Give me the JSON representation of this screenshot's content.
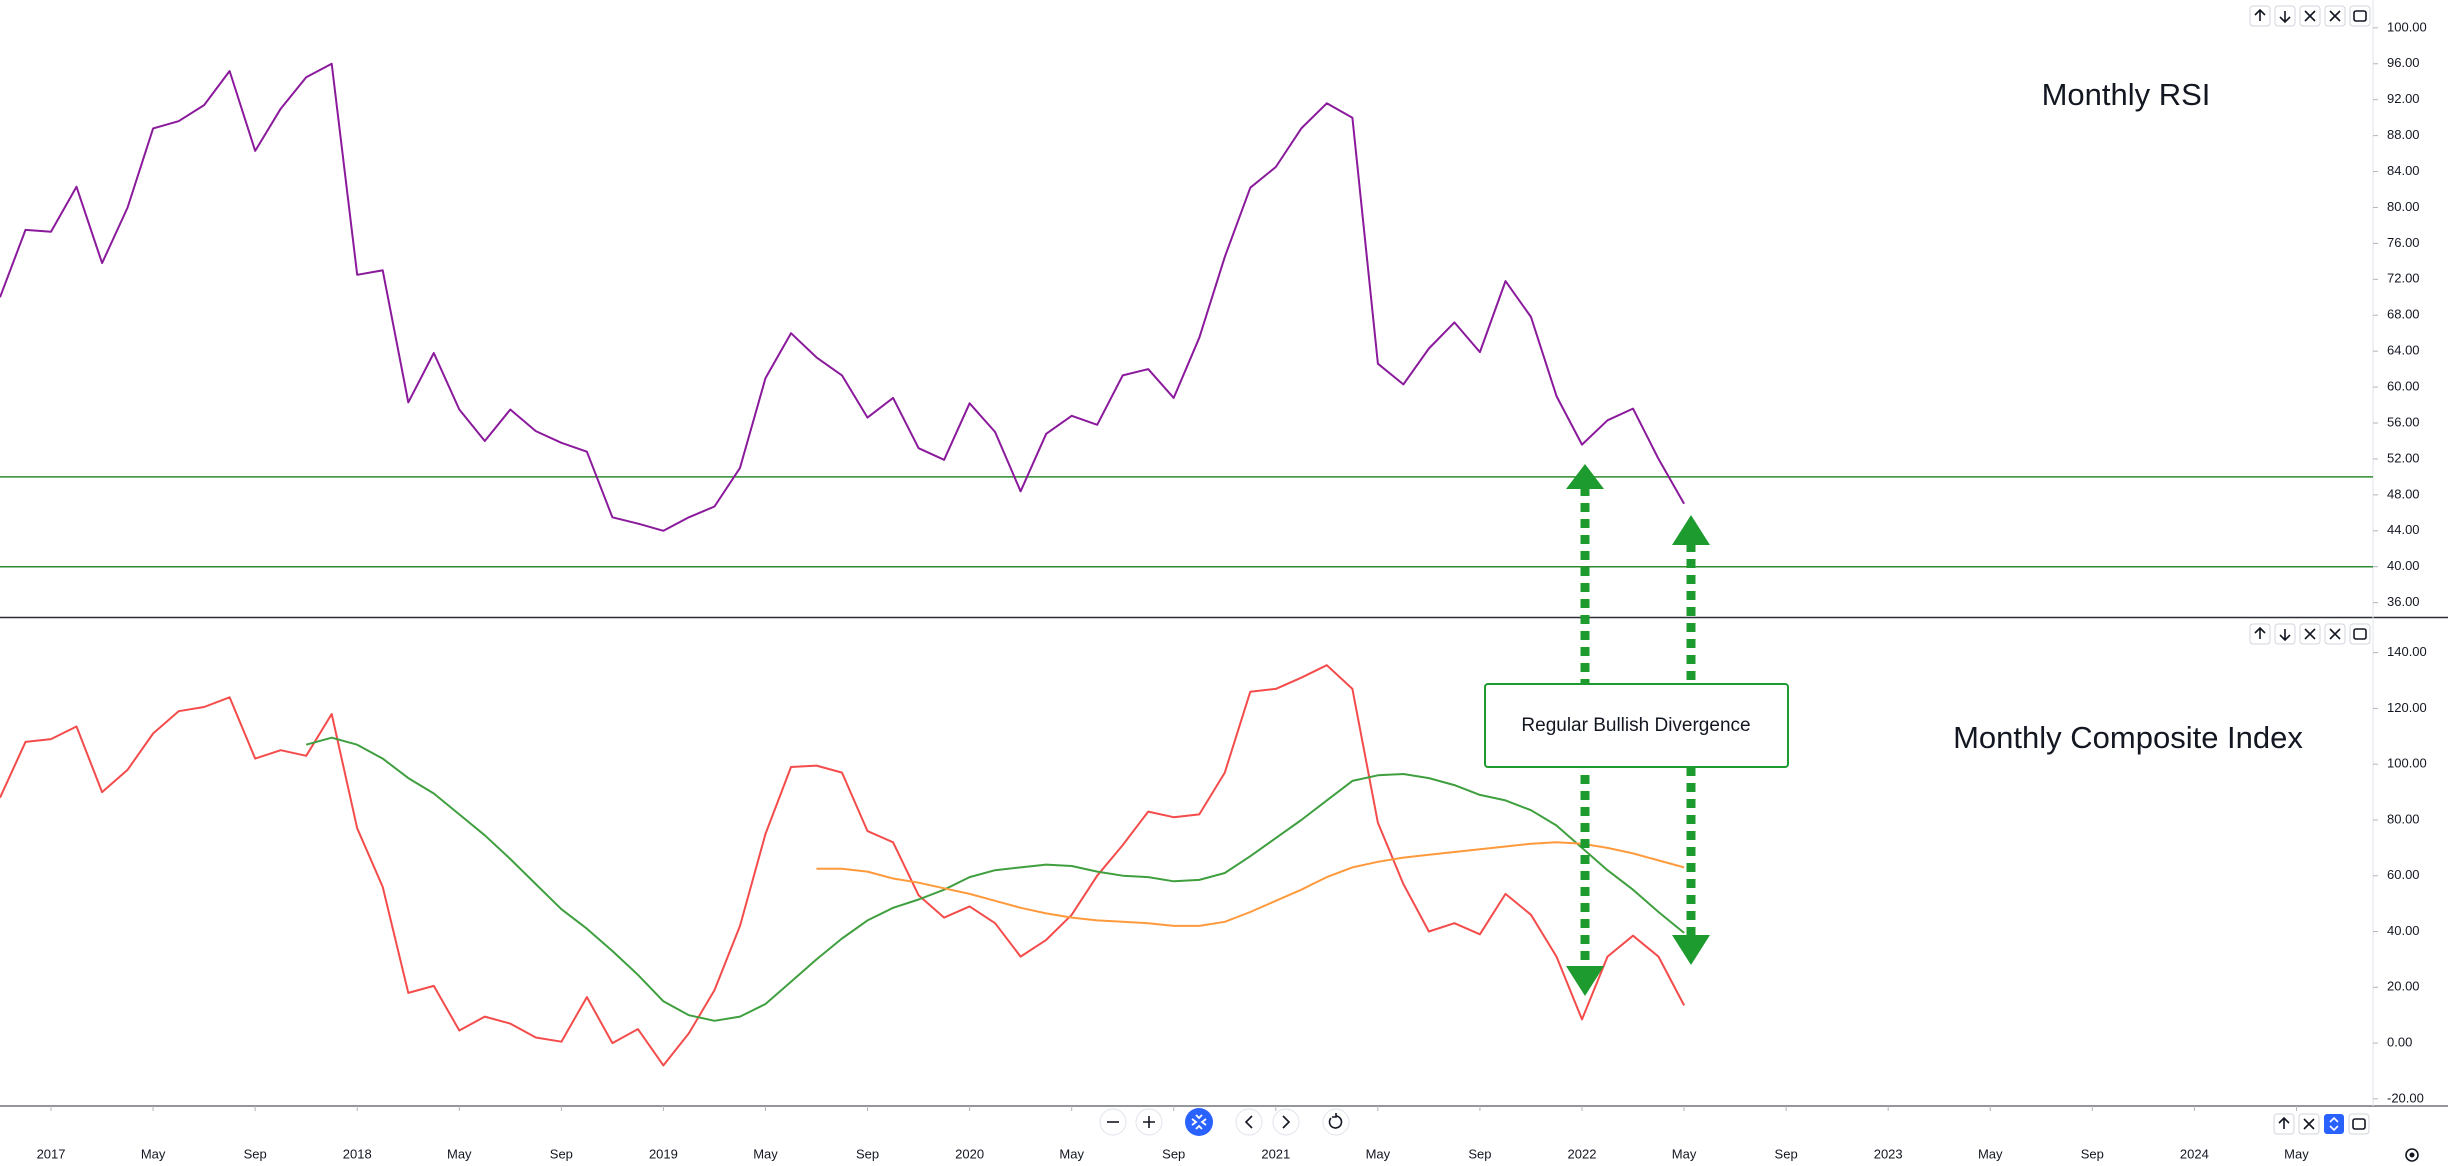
{
  "chart_data": [
    {
      "type": "line",
      "title": "Monthly RSI",
      "x": [
        "2016-11",
        "2016-12",
        "2017-01",
        "2017-02",
        "2017-03",
        "2017-04",
        "2017-05",
        "2017-06",
        "2017-07",
        "2017-08",
        "2017-09",
        "2017-10",
        "2017-11",
        "2017-12",
        "2018-01",
        "2018-02",
        "2018-03",
        "2018-04",
        "2018-05",
        "2018-06",
        "2018-07",
        "2018-08",
        "2018-09",
        "2018-10",
        "2018-11",
        "2018-12",
        "2019-01",
        "2019-02",
        "2019-03",
        "2019-04",
        "2019-05",
        "2019-06",
        "2019-07",
        "2019-08",
        "2019-09",
        "2019-10",
        "2019-11",
        "2019-12",
        "2020-01",
        "2020-02",
        "2020-03",
        "2020-04",
        "2020-05",
        "2020-06",
        "2020-07",
        "2020-08",
        "2020-09",
        "2020-10",
        "2020-11",
        "2020-12",
        "2021-01",
        "2021-02",
        "2021-03",
        "2021-04",
        "2021-05",
        "2021-06",
        "2021-07",
        "2021-08",
        "2021-09",
        "2021-10",
        "2021-11",
        "2021-12",
        "2022-01",
        "2022-02",
        "2022-03",
        "2022-04",
        "2022-05"
      ],
      "xlim": [
        "2016-11",
        "2024-08"
      ],
      "series": [
        {
          "color": "#8a1a9b",
          "values": [
            70,
            77.5,
            77.3,
            82.3,
            73.8,
            80,
            88.8,
            89.6,
            91.4,
            95.2,
            86.3,
            91,
            94.5,
            96,
            72.5,
            73,
            58.3,
            63.8,
            57.5,
            54,
            57.5,
            55.1,
            53.8,
            52.8,
            45.5,
            44.8,
            44,
            45.5,
            46.7,
            51,
            61,
            66,
            63.3,
            61.3,
            56.6,
            58.8,
            53.2,
            51.9,
            58.2,
            55,
            48.4,
            54.8,
            56.8,
            55.8,
            61.3,
            62,
            58.8,
            65.5,
            74.5,
            82.2,
            84.5,
            88.8,
            91.6,
            90,
            62.6,
            60.3,
            64.3,
            67.2,
            63.9,
            71.8,
            67.8,
            59,
            53.6,
            56.3,
            57.6,
            52,
            47
          ]
        }
      ],
      "ylim": [
        34.4,
        103.1
      ],
      "yticks": [
        {
          "value": 100,
          "label": "100.00"
        },
        {
          "value": 96,
          "label": "96.00"
        },
        {
          "value": 92,
          "label": "92.00"
        },
        {
          "value": 88,
          "label": "88.00"
        },
        {
          "value": 84,
          "label": "84.00"
        },
        {
          "value": 80,
          "label": "80.00"
        },
        {
          "value": 76,
          "label": "76.00"
        },
        {
          "value": 72,
          "label": "72.00"
        },
        {
          "value": 68,
          "label": "68.00"
        },
        {
          "value": 64,
          "label": "64.00"
        },
        {
          "value": 60,
          "label": "60.00"
        },
        {
          "value": 56,
          "label": "56.00"
        },
        {
          "value": 52,
          "label": "52.00"
        },
        {
          "value": 48,
          "label": "48.00"
        },
        {
          "value": 44,
          "label": "44.00"
        },
        {
          "value": 40,
          "label": "40.00"
        },
        {
          "value": 36,
          "label": "36.00"
        }
      ],
      "hlines": [
        50,
        40
      ],
      "hline_color": "#2e8b2e"
    },
    {
      "type": "line",
      "title": "Monthly Composite Index",
      "annotation": "Regular Bullish Divergence",
      "x": [
        "2016-11",
        "2016-12",
        "2017-01",
        "2017-02",
        "2017-03",
        "2017-04",
        "2017-05",
        "2017-06",
        "2017-07",
        "2017-08",
        "2017-09",
        "2017-10",
        "2017-11",
        "2017-12",
        "2018-01",
        "2018-02",
        "2018-03",
        "2018-04",
        "2018-05",
        "2018-06",
        "2018-07",
        "2018-08",
        "2018-09",
        "2018-10",
        "2018-11",
        "2018-12",
        "2019-01",
        "2019-02",
        "2019-03",
        "2019-04",
        "2019-05",
        "2019-06",
        "2019-07",
        "2019-08",
        "2019-09",
        "2019-10",
        "2019-11",
        "2019-12",
        "2020-01",
        "2020-02",
        "2020-03",
        "2020-04",
        "2020-05",
        "2020-06",
        "2020-07",
        "2020-08",
        "2020-09",
        "2020-10",
        "2020-11",
        "2020-12",
        "2021-01",
        "2021-02",
        "2021-03",
        "2021-04",
        "2021-05",
        "2021-06",
        "2021-07",
        "2021-08",
        "2021-09",
        "2021-10",
        "2021-11",
        "2021-12",
        "2022-01",
        "2022-02",
        "2022-03",
        "2022-04",
        "2022-05"
      ],
      "xlim": [
        "2016-11",
        "2024-08"
      ],
      "xticks": [
        {
          "value": "2017-01",
          "label": "2017"
        },
        {
          "value": "2017-05",
          "label": "May"
        },
        {
          "value": "2017-09",
          "label": "Sep"
        },
        {
          "value": "2018-01",
          "label": "2018"
        },
        {
          "value": "2018-05",
          "label": "May"
        },
        {
          "value": "2018-09",
          "label": "Sep"
        },
        {
          "value": "2019-01",
          "label": "2019"
        },
        {
          "value": "2019-05",
          "label": "May"
        },
        {
          "value": "2019-09",
          "label": "Sep"
        },
        {
          "value": "2020-01",
          "label": "2020"
        },
        {
          "value": "2020-05",
          "label": "May"
        },
        {
          "value": "2020-09",
          "label": "Sep"
        },
        {
          "value": "2021-01",
          "label": "2021"
        },
        {
          "value": "2021-05",
          "label": "May"
        },
        {
          "value": "2021-09",
          "label": "Sep"
        },
        {
          "value": "2022-01",
          "label": "2022"
        },
        {
          "value": "2022-05",
          "label": "May"
        },
        {
          "value": "2022-09",
          "label": "Sep"
        },
        {
          "value": "2023-01",
          "label": "2023"
        },
        {
          "value": "2023-05",
          "label": "May"
        },
        {
          "value": "2023-09",
          "label": "Sep"
        },
        {
          "value": "2024-01",
          "label": "2024"
        },
        {
          "value": "2024-05",
          "label": "May"
        }
      ],
      "series": [
        {
          "color": "#f44b4b",
          "values": [
            88,
            108,
            109,
            113.5,
            90,
            98,
            111,
            119,
            120.5,
            124,
            102,
            105,
            103,
            118,
            77,
            56,
            18,
            20.5,
            4.5,
            9.5,
            7,
            2,
            0.5,
            16.5,
            0,
            5,
            -8,
            3.5,
            19,
            42,
            75,
            99,
            99.5,
            97,
            76,
            72,
            53,
            45,
            49,
            43,
            31,
            37,
            46,
            60,
            71,
            83,
            81,
            82,
            97,
            126,
            127,
            131,
            135.5,
            127,
            79,
            57,
            40,
            43,
            39,
            53.5,
            46,
            31,
            8.5,
            31,
            38.5,
            31,
            13.5
          ]
        },
        {
          "color": "#3f9f3f",
          "values": [
            null,
            null,
            null,
            null,
            null,
            null,
            null,
            null,
            null,
            null,
            null,
            null,
            107,
            109.5,
            107,
            102,
            95,
            89.5,
            82,
            74.5,
            66,
            57,
            48,
            41,
            33,
            24.5,
            15,
            10,
            8,
            9.5,
            14,
            22,
            30,
            37.5,
            44,
            48.5,
            51.5,
            55,
            59.5,
            62,
            63,
            64,
            63.5,
            61.5,
            60,
            59.5,
            58,
            58.5,
            61,
            67,
            73.5,
            80,
            87,
            94,
            96,
            96.5,
            95,
            92.5,
            89,
            87,
            83.5,
            78,
            70,
            62,
            55,
            47,
            39.5
          ]
        },
        {
          "color": "#ff9a3c",
          "values": [
            null,
            null,
            null,
            null,
            null,
            null,
            null,
            null,
            null,
            null,
            null,
            null,
            null,
            null,
            null,
            null,
            null,
            null,
            null,
            null,
            null,
            null,
            null,
            null,
            null,
            null,
            null,
            null,
            null,
            null,
            null,
            null,
            62.5,
            62.5,
            61.5,
            59,
            57.5,
            55.5,
            53.5,
            51,
            48.5,
            46.5,
            45,
            44,
            43.5,
            43,
            42,
            42,
            43.5,
            47,
            51,
            55,
            59.5,
            63,
            65,
            66.5,
            67.5,
            68.5,
            69.5,
            70.5,
            71.5,
            72,
            71.5,
            70,
            68,
            65.5,
            63
          ]
        }
      ],
      "ylim": [
        -22.2,
        151.7
      ],
      "yticks": [
        {
          "value": 140,
          "label": "140.00"
        },
        {
          "value": 120,
          "label": "120.00"
        },
        {
          "value": 100,
          "label": "100.00"
        },
        {
          "value": 80,
          "label": "80.00"
        },
        {
          "value": 60,
          "label": "60.00"
        },
        {
          "value": 40,
          "label": "40.00"
        },
        {
          "value": 20,
          "label": "20.00"
        },
        {
          "value": 0,
          "label": "0.00"
        },
        {
          "value": -20,
          "label": "-20.00"
        }
      ]
    }
  ]
}
